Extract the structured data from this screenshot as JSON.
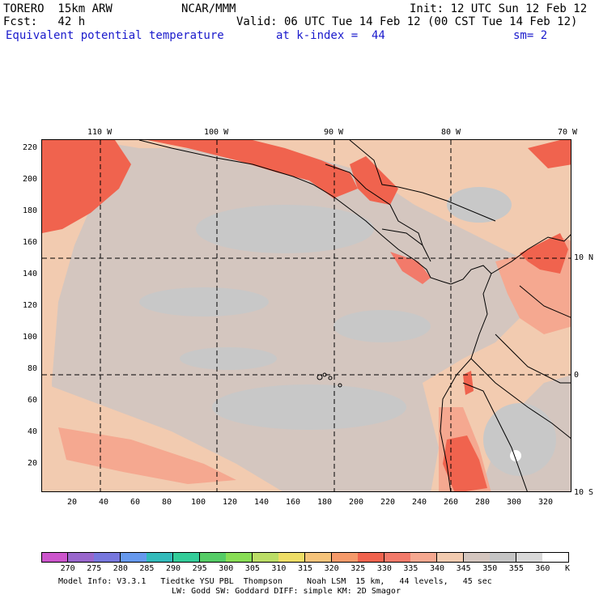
{
  "header": {
    "model": "TORERO  15km ARW",
    "org": "NCAR/MMM",
    "init": "Init: 12 UTC Sun 12 Feb 12",
    "fcst": "Fcst:   42 h",
    "valid": "Valid: 06 UTC Tue 14 Feb 12 (00 CST Tue 14 Feb 12)",
    "field": "Equivalent potential temperature",
    "level": "at k-index =  44",
    "smooth": "sm= 2"
  },
  "axes": {
    "top_lon": [
      "110 W",
      "100 W",
      "90 W",
      "80 W",
      "70 W"
    ],
    "right_lat": [
      "10 N",
      "0",
      "10 S"
    ],
    "left_y": [
      "220",
      "200",
      "180",
      "160",
      "140",
      "120",
      "100",
      "80",
      "60",
      "40",
      "20"
    ],
    "bottom_x": [
      "20",
      "40",
      "60",
      "80",
      "100",
      "120",
      "140",
      "160",
      "180",
      "200",
      "220",
      "240",
      "260",
      "280",
      "300",
      "320"
    ]
  },
  "colorbar": {
    "labels": [
      "270",
      "275",
      "280",
      "285",
      "290",
      "295",
      "300",
      "305",
      "310",
      "315",
      "320",
      "325",
      "330",
      "335",
      "340",
      "345",
      "350",
      "355",
      "360"
    ],
    "unit": "K",
    "colors": [
      "#cc55cc",
      "#9966cc",
      "#7777dd",
      "#6699ee",
      "#33bbbb",
      "#33cc99",
      "#55cc66",
      "#88dd55",
      "#bbdd66",
      "#eedd66",
      "#f5c37a",
      "#f59a6a",
      "#f0634e",
      "#f27a6a",
      "#f5a890",
      "#f2cbb0",
      "#d4c6bf",
      "#c5c5c5",
      "#d9d9d9",
      "#ffffff"
    ]
  },
  "footer": {
    "line1": "Model Info: V3.3.1   Tiedtke YSU PBL  Thompson     Noah LSM  15 km,   44 levels,   45 sec",
    "line2": "LW: Godd SW: Goddard DIFF: simple KM: 2D Smagor"
  }
}
